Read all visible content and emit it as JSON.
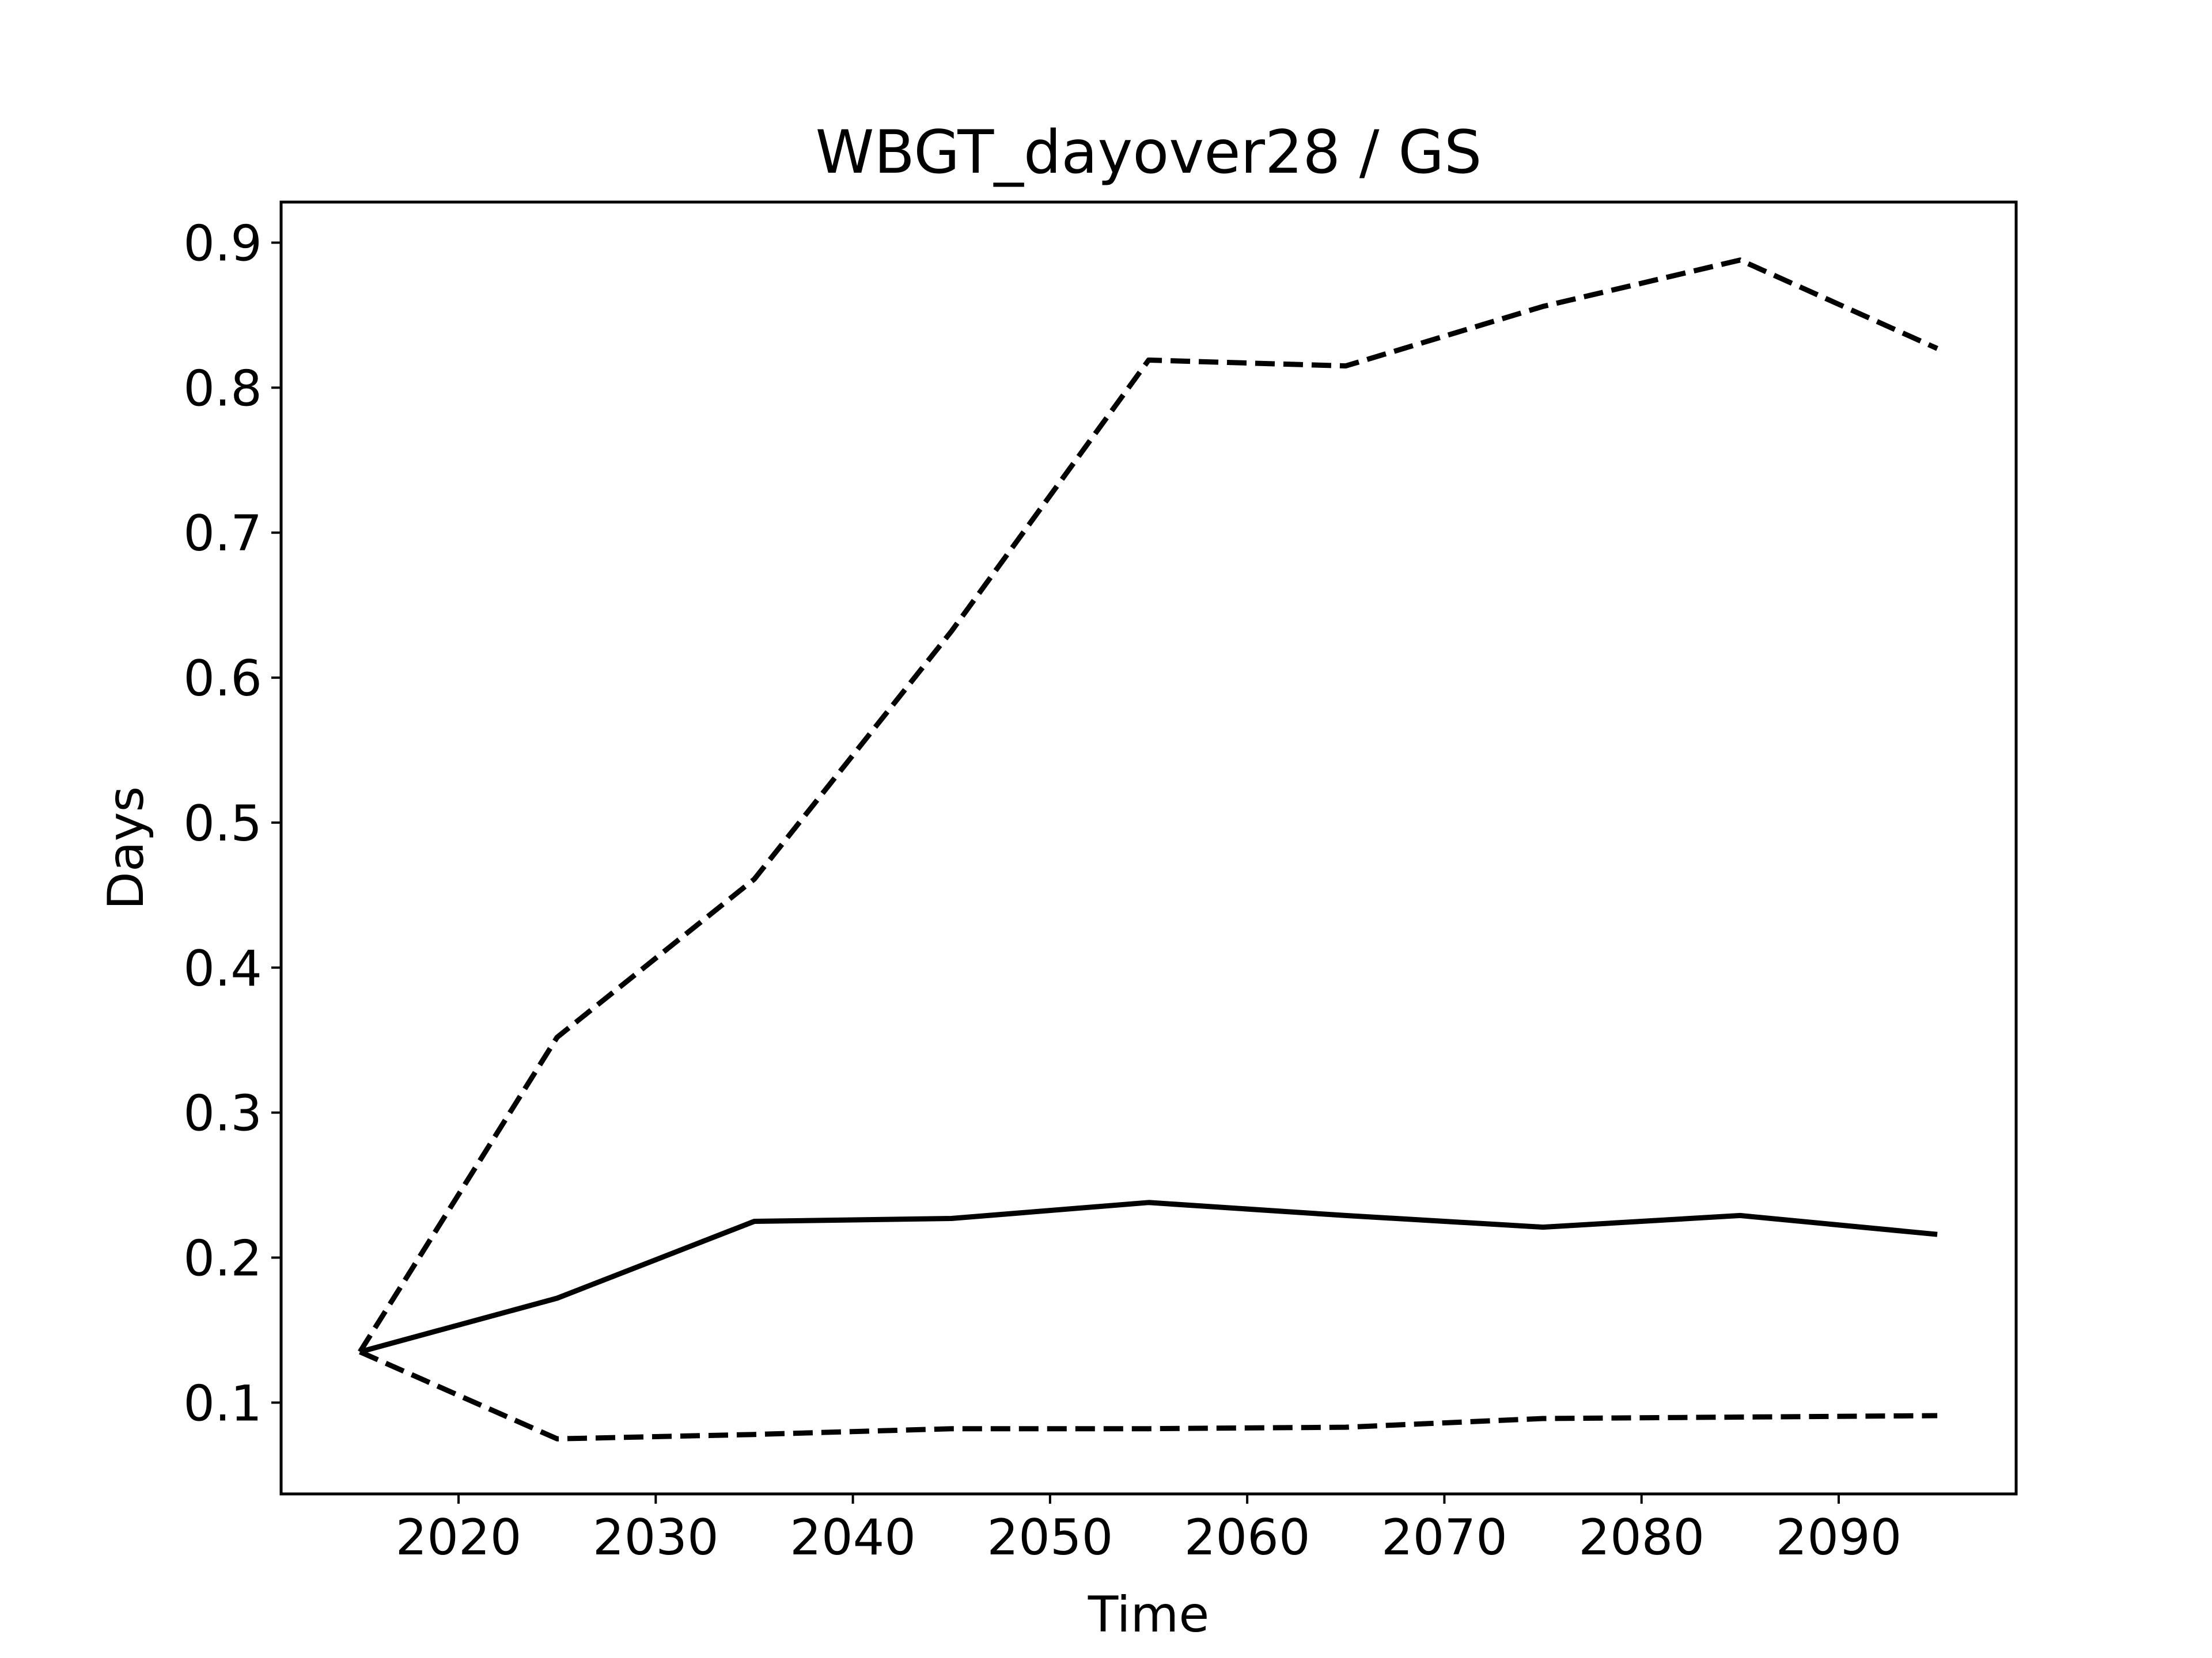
{
  "chart_data": {
    "type": "line",
    "title": "WBGT_dayover28 / GS",
    "xlabel": "Time",
    "ylabel": "Days",
    "xlim": [
      2011,
      2099
    ],
    "ylim": [
      0.037,
      0.928
    ],
    "xticks": [
      2020,
      2030,
      2040,
      2050,
      2060,
      2070,
      2080,
      2090
    ],
    "yticks": [
      0.1,
      0.2,
      0.3,
      0.4,
      0.5,
      0.6,
      0.7,
      0.8,
      0.9
    ],
    "grid": false,
    "x": [
      2015,
      2025,
      2035,
      2045,
      2055,
      2065,
      2075,
      2085,
      2095
    ],
    "series": [
      {
        "style": "solid",
        "color": "#000000",
        "values": [
          0.135,
          0.172,
          0.225,
          0.227,
          0.238,
          0.229,
          0.221,
          0.229,
          0.216
        ]
      },
      {
        "style": "dashed",
        "color": "#000000",
        "values": [
          0.135,
          0.352,
          0.461,
          0.632,
          0.819,
          0.815,
          0.856,
          0.888,
          0.827
        ]
      },
      {
        "style": "dashed",
        "color": "#000000",
        "values": [
          0.135,
          0.075,
          0.078,
          0.082,
          0.082,
          0.083,
          0.089,
          0.09,
          0.091
        ]
      }
    ]
  }
}
